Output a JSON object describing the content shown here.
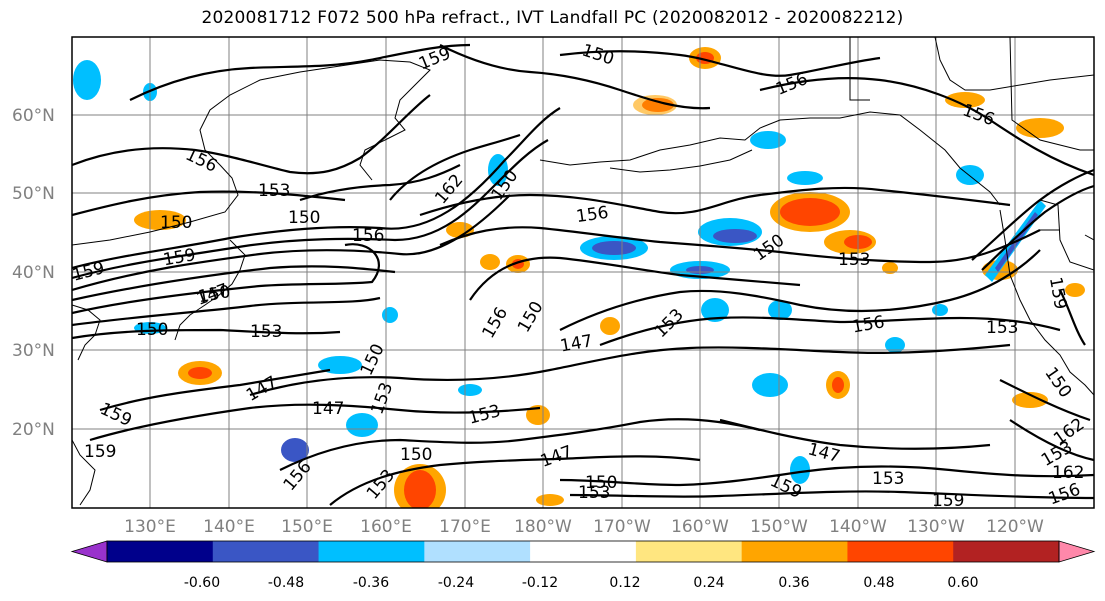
{
  "title": "2020081712 F072 500 hPa refract., IVT Landfall PC (2020082012 - 2020082212)",
  "lat_labels": [
    "60°N",
    "50°N",
    "40°N",
    "30°N",
    "20°N"
  ],
  "lon_labels": [
    "130°E",
    "140°E",
    "150°E",
    "160°E",
    "170°E",
    "180°W",
    "170°W",
    "160°W",
    "150°W",
    "140°W",
    "130°W",
    "120°W"
  ],
  "contour_labels": [
    "159",
    "150",
    "156",
    "156",
    "153",
    "150",
    "162",
    "150",
    "156",
    "150",
    "159",
    "150",
    "156",
    "153",
    "159",
    "147",
    "150",
    "153",
    "156",
    "150",
    "147",
    "153",
    "156",
    "153",
    "159",
    "150",
    "147",
    "153",
    "159",
    "147",
    "153",
    "162",
    "153",
    "156",
    "150",
    "153",
    "159",
    "150",
    "156",
    "162",
    "153",
    "147",
    "159",
    "150",
    "153",
    "159",
    "156",
    "147",
    "150"
  ],
  "colorbar": {
    "ticks": [
      "-0.60",
      "-0.48",
      "-0.36",
      "-0.24",
      "-0.12",
      "0.12",
      "0.24",
      "0.36",
      "0.48",
      "0.60"
    ],
    "colors": [
      "#9932CC",
      "#00008B",
      "#3A56C5",
      "#00BFFF",
      "#B0E0FF",
      "#FFFFFF",
      "#FFE680",
      "#FFA500",
      "#FF4500",
      "#B22222",
      "#FF88AA"
    ]
  },
  "colors": {
    "grid": "#808080",
    "contour": "#000000",
    "coast": "#000000"
  }
}
